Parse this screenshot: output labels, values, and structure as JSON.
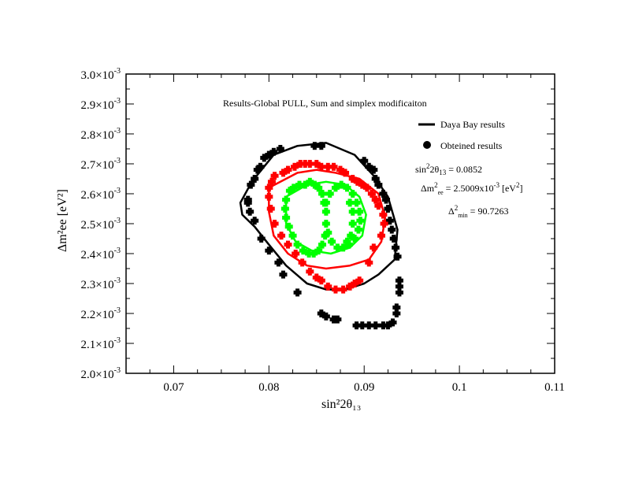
{
  "chart_data": {
    "type": "scatter",
    "title": "Results-Global PULL, Sum and simplex modificaiton",
    "xlabel": "sin²2θ₁₃",
    "ylabel": "Δm²ee [eV²]",
    "xlim": [
      0.065,
      0.11
    ],
    "ylim": [
      0.002,
      0.003
    ],
    "grid": false,
    "x_ticks": [
      {
        "value": 0.07,
        "label": "0.07"
      },
      {
        "value": 0.08,
        "label": "0.08"
      },
      {
        "value": 0.09,
        "label": "0.09"
      },
      {
        "value": 0.1,
        "label": "0.1"
      },
      {
        "value": 0.11,
        "label": "0.11"
      }
    ],
    "y_ticks": [
      {
        "value": 0.002,
        "mant": "2.0×10",
        "exp": "-3"
      },
      {
        "value": 0.0021,
        "mant": "2.1×10",
        "exp": "-3"
      },
      {
        "value": 0.0022,
        "mant": "2.2×10",
        "exp": "-3"
      },
      {
        "value": 0.0023,
        "mant": "2.3×10",
        "exp": "-3"
      },
      {
        "value": 0.0024,
        "mant": "2.4×10",
        "exp": "-3"
      },
      {
        "value": 0.0025,
        "mant": "2.5×10",
        "exp": "-3"
      },
      {
        "value": 0.0026,
        "mant": "2.6×10",
        "exp": "-3"
      },
      {
        "value": 0.0027,
        "mant": "2.7×10",
        "exp": "-3"
      },
      {
        "value": 0.0028,
        "mant": "2.8×10",
        "exp": "-3"
      },
      {
        "value": 0.0029,
        "mant": "2.9×10",
        "exp": "-3"
      },
      {
        "value": 0.003,
        "mant": "3.0×10",
        "exp": "-3"
      }
    ],
    "legend": {
      "placement": "top-right",
      "entries": [
        {
          "label": "Daya Bay results",
          "marker": "line",
          "color": "#000000"
        },
        {
          "label": "Obteined results",
          "marker": "circle",
          "color": "#000000"
        }
      ]
    },
    "annotations": {
      "sin2": {
        "pre": "sin",
        "sup": "2",
        "mid": "2θ",
        "sub": "13",
        "post": " = 0.0852"
      },
      "dm2": {
        "pre": "Δm",
        "sup": "2",
        "sub": "ee",
        "post": " = 2.5009x10",
        "sup2": "-3",
        "post2": " [eV",
        "sup3": "2",
        "post3": "]"
      },
      "chi2": {
        "pre": "Δ",
        "sup": "2",
        "sub": "min",
        "post": " = 90.7263"
      }
    },
    "contours": [
      {
        "color": "#000000",
        "points": [
          [
            0.0782,
            0.00264
          ],
          [
            0.0805,
            0.00273
          ],
          [
            0.083,
            0.00276
          ],
          [
            0.086,
            0.00277
          ],
          [
            0.089,
            0.00273
          ],
          [
            0.091,
            0.00266
          ],
          [
            0.0925,
            0.00259
          ],
          [
            0.0935,
            0.00248
          ],
          [
            0.0932,
            0.00238
          ],
          [
            0.0915,
            0.00233
          ],
          [
            0.09,
            0.0023
          ],
          [
            0.088,
            0.00228
          ],
          [
            0.086,
            0.00228
          ],
          [
            0.084,
            0.0023
          ],
          [
            0.0818,
            0.00236
          ],
          [
            0.08,
            0.00243
          ],
          [
            0.0785,
            0.00249
          ],
          [
            0.0772,
            0.00253
          ],
          [
            0.077,
            0.00257
          ],
          [
            0.0782,
            0.00264
          ]
        ]
      },
      {
        "color": "#ff0000",
        "points": [
          [
            0.08,
            0.00262
          ],
          [
            0.083,
            0.00267
          ],
          [
            0.085,
            0.00268
          ],
          [
            0.087,
            0.00267
          ],
          [
            0.0895,
            0.00265
          ],
          [
            0.0915,
            0.0026
          ],
          [
            0.0922,
            0.00252
          ],
          [
            0.0918,
            0.00244
          ],
          [
            0.0905,
            0.00238
          ],
          [
            0.0885,
            0.00236
          ],
          [
            0.086,
            0.00235
          ],
          [
            0.084,
            0.00236
          ],
          [
            0.082,
            0.0024
          ],
          [
            0.0805,
            0.00246
          ],
          [
            0.08,
            0.00254
          ],
          [
            0.08,
            0.00262
          ]
        ]
      },
      {
        "color": "#00ff00",
        "points": [
          [
            0.0818,
            0.00259
          ],
          [
            0.084,
            0.00263
          ],
          [
            0.086,
            0.00264
          ],
          [
            0.088,
            0.00263
          ],
          [
            0.0895,
            0.00259
          ],
          [
            0.0902,
            0.00253
          ],
          [
            0.0898,
            0.00246
          ],
          [
            0.0885,
            0.00242
          ],
          [
            0.0865,
            0.0024
          ],
          [
            0.0845,
            0.00241
          ],
          [
            0.0828,
            0.00244
          ],
          [
            0.0818,
            0.0025
          ],
          [
            0.0818,
            0.00259
          ]
        ]
      }
    ],
    "series": [
      {
        "color": "#000000",
        "points": [
          [
            0.0778,
            0.00258
          ],
          [
            0.0781,
            0.00263
          ],
          [
            0.0785,
            0.00265
          ],
          [
            0.0788,
            0.00268
          ],
          [
            0.0791,
            0.00269
          ],
          [
            0.0795,
            0.00272
          ],
          [
            0.08,
            0.00273
          ],
          [
            0.0805,
            0.00274
          ],
          [
            0.0812,
            0.00275
          ],
          [
            0.0848,
            0.00276
          ],
          [
            0.0855,
            0.00276
          ],
          [
            0.09,
            0.00271
          ],
          [
            0.0905,
            0.00269
          ],
          [
            0.091,
            0.00268
          ],
          [
            0.0912,
            0.00265
          ],
          [
            0.0915,
            0.00263
          ],
          [
            0.092,
            0.0026
          ],
          [
            0.0923,
            0.00258
          ],
          [
            0.0925,
            0.00255
          ],
          [
            0.0927,
            0.00251
          ],
          [
            0.0929,
            0.00248
          ],
          [
            0.0931,
            0.00245
          ],
          [
            0.0933,
            0.00242
          ],
          [
            0.0935,
            0.00239
          ],
          [
            0.0937,
            0.00231
          ],
          [
            0.0937,
            0.00229
          ],
          [
            0.0937,
            0.00227
          ],
          [
            0.0934,
            0.00222
          ],
          [
            0.0934,
            0.0022
          ],
          [
            0.093,
            0.00217
          ],
          [
            0.0925,
            0.00216
          ],
          [
            0.092,
            0.00216
          ],
          [
            0.0912,
            0.00216
          ],
          [
            0.0905,
            0.00216
          ],
          [
            0.0898,
            0.00216
          ],
          [
            0.0892,
            0.00216
          ],
          [
            0.0872,
            0.00218
          ],
          [
            0.0868,
            0.00218
          ],
          [
            0.086,
            0.00219
          ],
          [
            0.0855,
            0.0022
          ],
          [
            0.083,
            0.00227
          ],
          [
            0.0815,
            0.00233
          ],
          [
            0.081,
            0.00237
          ],
          [
            0.08,
            0.00241
          ],
          [
            0.0792,
            0.00245
          ],
          [
            0.0785,
            0.00251
          ],
          [
            0.078,
            0.00254
          ],
          [
            0.0778,
            0.00257
          ]
        ]
      },
      {
        "color": "#ff0000",
        "points": [
          [
            0.08,
            0.00262
          ],
          [
            0.0803,
            0.00264
          ],
          [
            0.0806,
            0.00266
          ],
          [
            0.0815,
            0.00267
          ],
          [
            0.082,
            0.00268
          ],
          [
            0.0827,
            0.00269
          ],
          [
            0.0833,
            0.0027
          ],
          [
            0.0838,
            0.0027
          ],
          [
            0.0843,
            0.0027
          ],
          [
            0.085,
            0.0027
          ],
          [
            0.0855,
            0.00269
          ],
          [
            0.0862,
            0.00269
          ],
          [
            0.0868,
            0.00269
          ],
          [
            0.0875,
            0.00268
          ],
          [
            0.088,
            0.00267
          ],
          [
            0.0888,
            0.00265
          ],
          [
            0.0893,
            0.00264
          ],
          [
            0.0898,
            0.00263
          ],
          [
            0.0903,
            0.00262
          ],
          [
            0.0908,
            0.0026
          ],
          [
            0.0912,
            0.00258
          ],
          [
            0.0915,
            0.00256
          ],
          [
            0.092,
            0.00253
          ],
          [
            0.0921,
            0.0025
          ],
          [
            0.0918,
            0.00246
          ],
          [
            0.091,
            0.00242
          ],
          [
            0.0905,
            0.00237
          ],
          [
            0.0895,
            0.00231
          ],
          [
            0.089,
            0.0023
          ],
          [
            0.0885,
            0.00229
          ],
          [
            0.0878,
            0.00228
          ],
          [
            0.087,
            0.00228
          ],
          [
            0.0862,
            0.00229
          ],
          [
            0.0855,
            0.00231
          ],
          [
            0.085,
            0.00232
          ],
          [
            0.0843,
            0.00234
          ],
          [
            0.0835,
            0.00237
          ],
          [
            0.0828,
            0.0024
          ],
          [
            0.082,
            0.00243
          ],
          [
            0.0813,
            0.00246
          ],
          [
            0.0806,
            0.0025
          ],
          [
            0.0802,
            0.00255
          ],
          [
            0.08,
            0.00259
          ]
        ]
      },
      {
        "color": "#00ff00",
        "points": [
          [
            0.0818,
            0.00258
          ],
          [
            0.0822,
            0.00261
          ],
          [
            0.0826,
            0.00262
          ],
          [
            0.0832,
            0.00263
          ],
          [
            0.0838,
            0.00263
          ],
          [
            0.0843,
            0.00264
          ],
          [
            0.0848,
            0.00263
          ],
          [
            0.0852,
            0.00262
          ],
          [
            0.0856,
            0.0026
          ],
          [
            0.0858,
            0.00257
          ],
          [
            0.086,
            0.00254
          ],
          [
            0.086,
            0.0025
          ],
          [
            0.0859,
            0.00246
          ],
          [
            0.0856,
            0.00243
          ],
          [
            0.0852,
            0.00241
          ],
          [
            0.0847,
            0.0024
          ],
          [
            0.0842,
            0.0024
          ],
          [
            0.0836,
            0.00241
          ],
          [
            0.083,
            0.00243
          ],
          [
            0.0825,
            0.00246
          ],
          [
            0.0821,
            0.00249
          ],
          [
            0.0818,
            0.00252
          ],
          [
            0.0817,
            0.00255
          ],
          [
            0.086,
            0.00257
          ],
          [
            0.0864,
            0.0026
          ],
          [
            0.087,
            0.00262
          ],
          [
            0.0876,
            0.00263
          ],
          [
            0.0882,
            0.00262
          ],
          [
            0.0888,
            0.0026
          ],
          [
            0.0892,
            0.00257
          ],
          [
            0.0895,
            0.00254
          ],
          [
            0.0896,
            0.00251
          ],
          [
            0.0894,
            0.00248
          ],
          [
            0.089,
            0.00245
          ],
          [
            0.0884,
            0.00243
          ],
          [
            0.0878,
            0.00242
          ],
          [
            0.0872,
            0.00242
          ],
          [
            0.0866,
            0.00244
          ],
          [
            0.0862,
            0.00247
          ],
          [
            0.0885,
            0.00257
          ],
          [
            0.0888,
            0.00254
          ],
          [
            0.0888,
            0.0025
          ],
          [
            0.0886,
            0.00246
          ],
          [
            0.0882,
            0.00244
          ]
        ]
      }
    ]
  }
}
